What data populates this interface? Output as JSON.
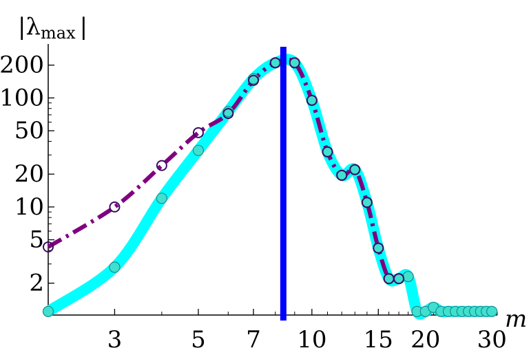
{
  "chart_data": {
    "type": "line",
    "xlabel": "m",
    "ylabel_main": "|λ",
    "ylabel_sub": "max",
    "ylabel_end": "|",
    "xscale": "log",
    "yscale": "log",
    "xlim": [
      2,
      31
    ],
    "ylim": [
      1.02,
      270
    ],
    "x_ticks": [
      3,
      5,
      7,
      10,
      15,
      20,
      30
    ],
    "y_ticks": [
      2,
      5,
      10,
      20,
      50,
      100,
      200
    ],
    "vertical_line_x": 8.4,
    "grid": false,
    "colors": {
      "cyan": "#00ffff",
      "cyan_marker": "#40e0d0",
      "purple": "#800080",
      "purple_marker_edge": "#3b0a66",
      "vline": "#0000ff"
    },
    "series": [
      {
        "style": "thick-cyan-curve-with-filled-circles",
        "x": [
          2,
          3,
          4,
          5,
          6,
          7,
          8,
          9,
          10,
          11,
          12,
          13,
          14,
          15,
          16,
          17,
          18,
          19,
          20,
          21,
          22,
          23,
          24,
          25,
          26,
          27,
          28,
          29,
          30
        ],
        "y": [
          1.1,
          2.8,
          12,
          33,
          75,
          150,
          210,
          210,
          95,
          32,
          19.5,
          22,
          11,
          4.2,
          2.2,
          2.2,
          2.3,
          1.1,
          1.1,
          1.2,
          1.1,
          1.1,
          1.1,
          1.1,
          1.1,
          1.1,
          1.1,
          1.1,
          1.1
        ]
      },
      {
        "style": "purple-dash-dot-with-open-circles",
        "x": [
          2,
          3,
          4,
          5,
          6,
          7,
          8,
          9,
          10,
          11,
          12,
          13,
          14,
          15,
          16,
          17
        ],
        "y": [
          4.3,
          10,
          24,
          48,
          72,
          145,
          210,
          210,
          95,
          32,
          19.5,
          22,
          11,
          4.2,
          2.2,
          2.2
        ]
      }
    ]
  }
}
